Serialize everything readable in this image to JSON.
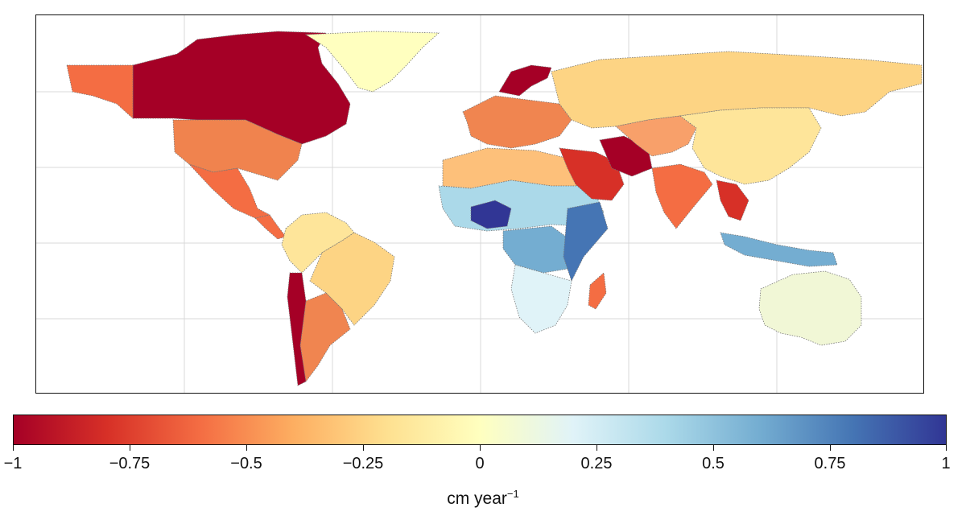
{
  "colorbar": {
    "label": "cm year",
    "label_exponent": "−1",
    "ticks": [
      "−1",
      "−0.75",
      "−0.5",
      "−0.25",
      "0",
      "0.25",
      "0.5",
      "0.75",
      "1"
    ],
    "colors": [
      "#a50026",
      "#d73027",
      "#f46d43",
      "#fdae61",
      "#fee090",
      "#ffffbf",
      "#e0f3f8",
      "#abd9e9",
      "#74add1",
      "#4575b4",
      "#313695"
    ]
  },
  "map": {
    "regions": [
      {
        "name": "canada",
        "color": "#a50026"
      },
      {
        "name": "alaska",
        "color": "#f46d43"
      },
      {
        "name": "greenland",
        "color": "#ffffbf"
      },
      {
        "name": "usa",
        "color": "#f0834e"
      },
      {
        "name": "mexico",
        "color": "#f46d43"
      },
      {
        "name": "central-america",
        "color": "#f46d43"
      },
      {
        "name": "south-america-north",
        "color": "#fee59a"
      },
      {
        "name": "brazil",
        "color": "#fdd484"
      },
      {
        "name": "argentina",
        "color": "#f08550"
      },
      {
        "name": "chile",
        "color": "#a50026"
      },
      {
        "name": "north-africa",
        "color": "#fdc07a"
      },
      {
        "name": "sahel",
        "color": "#abd9e9"
      },
      {
        "name": "west-africa-core",
        "color": "#313695"
      },
      {
        "name": "central-africa",
        "color": "#74add1"
      },
      {
        "name": "east-africa",
        "color": "#4575b4"
      },
      {
        "name": "southern-africa",
        "color": "#e0f3f8"
      },
      {
        "name": "madagascar",
        "color": "#f46d43"
      },
      {
        "name": "europe",
        "color": "#f08550"
      },
      {
        "name": "scandinavia",
        "color": "#a50026"
      },
      {
        "name": "russia",
        "color": "#fdd484"
      },
      {
        "name": "middle-east",
        "color": "#d73027"
      },
      {
        "name": "iran",
        "color": "#a50026"
      },
      {
        "name": "central-asia",
        "color": "#f8a06a"
      },
      {
        "name": "india",
        "color": "#f46d43"
      },
      {
        "name": "china",
        "color": "#fee59a"
      },
      {
        "name": "indochina",
        "color": "#d73027"
      },
      {
        "name": "indonesia",
        "color": "#74add1"
      },
      {
        "name": "australia",
        "color": "#f1f7d6"
      }
    ]
  }
}
